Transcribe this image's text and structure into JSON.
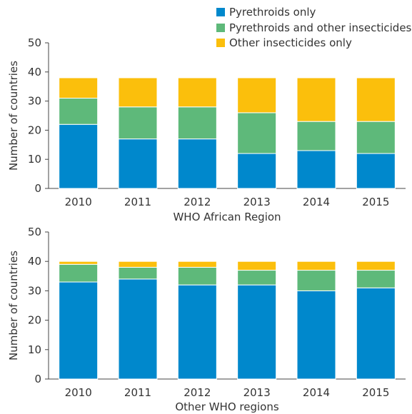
{
  "legend": [
    {
      "label": "Pyrethroids only",
      "color": "#0088cc"
    },
    {
      "label": "Pyrethroids and other insecticides",
      "color": "#5eb97a"
    },
    {
      "label": "Other insecticides only",
      "color": "#fbbf0c"
    }
  ],
  "chart_data": [
    {
      "type": "bar",
      "stacked": true,
      "title": "",
      "xlabel": "WHO African Region",
      "ylabel": "Number of countries",
      "ylim": [
        0,
        50
      ],
      "yticks": [
        0,
        10,
        20,
        30,
        40,
        50
      ],
      "grid": false,
      "legend_position": "top-right",
      "categories": [
        "2010",
        "2011",
        "2012",
        "2013",
        "2014",
        "2015"
      ],
      "series": [
        {
          "name": "Pyrethroids only",
          "color": "#0088cc",
          "values": [
            22,
            17,
            17,
            12,
            13,
            12
          ]
        },
        {
          "name": "Pyrethroids and other insecticides",
          "color": "#5eb97a",
          "values": [
            9,
            11,
            11,
            14,
            10,
            11
          ]
        },
        {
          "name": "Other insecticides only",
          "color": "#fbbf0c",
          "values": [
            7,
            10,
            10,
            12,
            15,
            15
          ]
        }
      ]
    },
    {
      "type": "bar",
      "stacked": true,
      "title": "",
      "xlabel": "Other WHO regions",
      "ylabel": "Number of countries",
      "ylim": [
        0,
        50
      ],
      "yticks": [
        0,
        10,
        20,
        30,
        40,
        50
      ],
      "grid": false,
      "categories": [
        "2010",
        "2011",
        "2012",
        "2013",
        "2014",
        "2015"
      ],
      "series": [
        {
          "name": "Pyrethroids only",
          "color": "#0088cc",
          "values": [
            33,
            34,
            32,
            32,
            30,
            31
          ]
        },
        {
          "name": "Pyrethroids and other insecticides",
          "color": "#5eb97a",
          "values": [
            6,
            4,
            6,
            5,
            7,
            6
          ]
        },
        {
          "name": "Other insecticides only",
          "color": "#fbbf0c",
          "values": [
            1,
            2,
            2,
            3,
            3,
            3
          ]
        }
      ]
    }
  ]
}
